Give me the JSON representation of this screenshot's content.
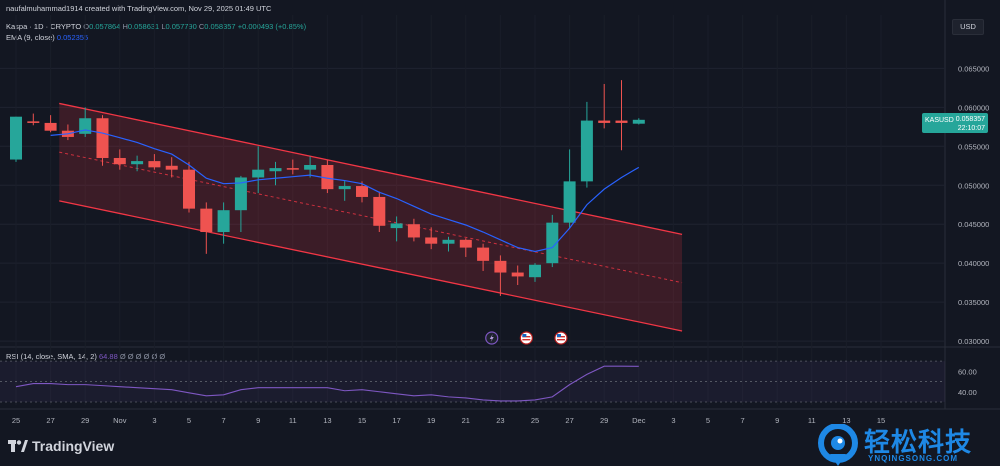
{
  "header": {
    "creator_line": "naufalmuhammad1914 created with TradingView.com, Nov 29, 2025 01:49 UTC",
    "symbol_line": "Kaspa · 1D · CRYPTO",
    "o_label": "O",
    "o_val": "0.057864",
    "h_label": "H",
    "h_val": "0.058631",
    "l_label": "L",
    "l_val": "0.057790",
    "c_label": "C",
    "c_val": "0.058357",
    "change": "+0.000493 (+0.85%)",
    "ema_label": "EMA (9, close)",
    "ema_val": "0.052355",
    "rsi_label": "RSI (14, close, SMA, 14, 2)",
    "rsi_val": "64.88",
    "rsi_na": "Ø Ø Ø Ø Ø Ø"
  },
  "currency_button": "USD",
  "price_tag": {
    "symbol": "KASUSD",
    "price": "0.058357",
    "countdown": "22:10:07"
  },
  "branding": {
    "logo_text": "TradingView"
  },
  "watermark": {
    "cn": "轻松科技",
    "en": "YNQINGSONG.COM"
  },
  "colors": {
    "up": "#26a69a",
    "down": "#ef5350",
    "ema": "#2962ff",
    "rsi": "#7e57c2",
    "channel": "#f23645",
    "background": "#131722"
  },
  "events": [
    {
      "icon": "lightning-icon",
      "index": 27.5
    },
    {
      "icon": "us-flag-icon",
      "index": 29.5
    },
    {
      "icon": "us-flag-icon",
      "index": 31.5
    }
  ],
  "chart_data": {
    "type": "candlestick",
    "title": "Kaspa · 1D · CRYPTO",
    "price_axis": {
      "ticks": [
        "0.030000",
        "0.035000",
        "0.040000",
        "0.045000",
        "0.050000",
        "0.055000",
        "0.060000",
        "0.065000"
      ],
      "range": [
        0.0295,
        0.068
      ]
    },
    "time_axis": {
      "labels": [
        {
          "i": 0,
          "t": "25"
        },
        {
          "i": 1,
          "t": "27"
        },
        {
          "i": 2,
          "t": "29"
        },
        {
          "i": 3,
          "t": "Nov"
        },
        {
          "i": 4,
          "t": "3"
        },
        {
          "i": 5,
          "t": "5"
        },
        {
          "i": 6,
          "t": "7"
        },
        {
          "i": 7,
          "t": "9"
        },
        {
          "i": 8,
          "t": "11"
        },
        {
          "i": 9,
          "t": "13"
        },
        {
          "i": 10,
          "t": "15"
        },
        {
          "i": 11,
          "t": "17"
        },
        {
          "i": 12,
          "t": "19"
        },
        {
          "i": 13,
          "t": "21"
        },
        {
          "i": 14,
          "t": "23"
        },
        {
          "i": 15,
          "t": "25"
        },
        {
          "i": 16,
          "t": "27"
        },
        {
          "i": 17,
          "t": "29"
        },
        {
          "i": 18,
          "t": "Dec"
        },
        {
          "i": 19,
          "t": "3"
        },
        {
          "i": 20,
          "t": "5"
        },
        {
          "i": 21,
          "t": "7"
        },
        {
          "i": 22,
          "t": "9"
        },
        {
          "i": 23,
          "t": "11"
        },
        {
          "i": 24,
          "t": "13"
        },
        {
          "i": 25,
          "t": "15"
        }
      ]
    },
    "candles": [
      {
        "o": 0.0533,
        "h": 0.0588,
        "l": 0.053,
        "c": 0.0588
      },
      {
        "o": 0.0582,
        "h": 0.0592,
        "l": 0.0577,
        "c": 0.058
      },
      {
        "o": 0.058,
        "h": 0.059,
        "l": 0.0568,
        "c": 0.057
      },
      {
        "o": 0.057,
        "h": 0.0578,
        "l": 0.0558,
        "c": 0.0562
      },
      {
        "o": 0.0566,
        "h": 0.06,
        "l": 0.0562,
        "c": 0.0586
      },
      {
        "o": 0.0586,
        "h": 0.059,
        "l": 0.0525,
        "c": 0.0535
      },
      {
        "o": 0.0535,
        "h": 0.0546,
        "l": 0.052,
        "c": 0.0527
      },
      {
        "o": 0.0527,
        "h": 0.0538,
        "l": 0.0518,
        "c": 0.0531
      },
      {
        "o": 0.0531,
        "h": 0.054,
        "l": 0.052,
        "c": 0.0523
      },
      {
        "o": 0.0525,
        "h": 0.0536,
        "l": 0.051,
        "c": 0.052
      },
      {
        "o": 0.052,
        "h": 0.053,
        "l": 0.0465,
        "c": 0.047
      },
      {
        "o": 0.047,
        "h": 0.0478,
        "l": 0.0412,
        "c": 0.044
      },
      {
        "o": 0.044,
        "h": 0.0478,
        "l": 0.0425,
        "c": 0.0468
      },
      {
        "o": 0.0468,
        "h": 0.0512,
        "l": 0.044,
        "c": 0.051
      },
      {
        "o": 0.051,
        "h": 0.055,
        "l": 0.049,
        "c": 0.052
      },
      {
        "o": 0.0518,
        "h": 0.053,
        "l": 0.05,
        "c": 0.0522
      },
      {
        "o": 0.0522,
        "h": 0.0533,
        "l": 0.0514,
        "c": 0.052
      },
      {
        "o": 0.052,
        "h": 0.0537,
        "l": 0.051,
        "c": 0.0526
      },
      {
        "o": 0.0526,
        "h": 0.0532,
        "l": 0.049,
        "c": 0.0495
      },
      {
        "o": 0.0495,
        "h": 0.0506,
        "l": 0.048,
        "c": 0.0499
      },
      {
        "o": 0.0499,
        "h": 0.0505,
        "l": 0.0478,
        "c": 0.0485
      },
      {
        "o": 0.0485,
        "h": 0.0492,
        "l": 0.044,
        "c": 0.0448
      },
      {
        "o": 0.0445,
        "h": 0.046,
        "l": 0.0428,
        "c": 0.0451
      },
      {
        "o": 0.045,
        "h": 0.0457,
        "l": 0.0428,
        "c": 0.0433
      },
      {
        "o": 0.0433,
        "h": 0.0446,
        "l": 0.0418,
        "c": 0.0425
      },
      {
        "o": 0.0425,
        "h": 0.0434,
        "l": 0.0415,
        "c": 0.043
      },
      {
        "o": 0.043,
        "h": 0.0432,
        "l": 0.0408,
        "c": 0.042
      },
      {
        "o": 0.042,
        "h": 0.0425,
        "l": 0.039,
        "c": 0.0403
      },
      {
        "o": 0.0403,
        "h": 0.041,
        "l": 0.0358,
        "c": 0.0388
      },
      {
        "o": 0.0388,
        "h": 0.0397,
        "l": 0.0372,
        "c": 0.0383
      },
      {
        "o": 0.0382,
        "h": 0.04,
        "l": 0.0376,
        "c": 0.0398
      },
      {
        "o": 0.04,
        "h": 0.0462,
        "l": 0.0395,
        "c": 0.0452
      },
      {
        "o": 0.0452,
        "h": 0.0546,
        "l": 0.0445,
        "c": 0.0505
      },
      {
        "o": 0.0505,
        "h": 0.0607,
        "l": 0.0497,
        "c": 0.0583
      },
      {
        "o": 0.0583,
        "h": 0.063,
        "l": 0.0573,
        "c": 0.058
      },
      {
        "o": 0.0583,
        "h": 0.0635,
        "l": 0.0545,
        "c": 0.058
      },
      {
        "o": 0.0579,
        "h": 0.0586,
        "l": 0.0578,
        "c": 0.0584
      }
    ],
    "ema": {
      "name": "EMA (9, close)",
      "values": [
        null,
        null,
        0.0564,
        0.0566,
        0.0571,
        0.0567,
        0.0561,
        0.0555,
        0.0547,
        0.054,
        0.0526,
        0.0509,
        0.0502,
        0.0503,
        0.0507,
        0.0509,
        0.0511,
        0.0513,
        0.0509,
        0.0506,
        0.0502,
        0.0491,
        0.0483,
        0.0473,
        0.0463,
        0.0456,
        0.0449,
        0.044,
        0.043,
        0.042,
        0.0415,
        0.042,
        0.0445,
        0.0475,
        0.0495,
        0.051,
        0.0523
      ]
    },
    "channel": {
      "upper": [
        {
          "i": 2.5,
          "p": 0.0605
        },
        {
          "i": 38.5,
          "p": 0.0437
        }
      ],
      "lower": [
        {
          "i": 2.5,
          "p": 0.048
        },
        {
          "i": 38.5,
          "p": 0.0313
        }
      ]
    },
    "rsi": {
      "name": "RSI (14, close, SMA, 14, 2)",
      "ticks": [
        "60.00",
        "40.00"
      ],
      "range": [
        29,
        76
      ],
      "bands": [
        70,
        50,
        30
      ],
      "values": [
        45,
        48,
        48,
        47,
        47,
        46,
        45,
        44,
        43,
        42,
        39,
        36,
        37,
        42,
        44,
        44,
        44,
        44,
        44,
        41,
        42,
        40,
        38,
        36,
        37,
        35,
        34,
        32,
        31,
        31,
        32,
        35,
        47,
        57,
        65,
        65,
        64.88
      ]
    }
  }
}
